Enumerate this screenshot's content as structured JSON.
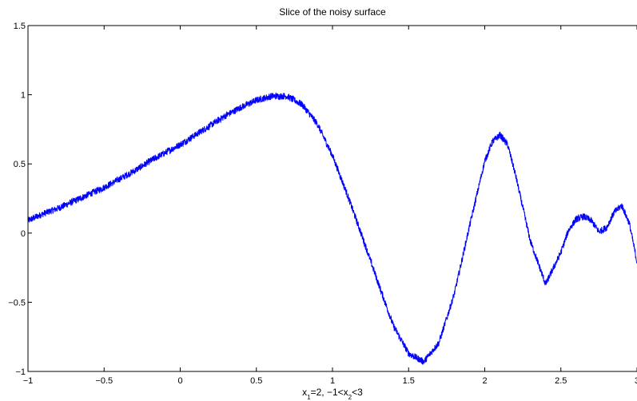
{
  "chart_data": {
    "type": "line",
    "title": "Slice of the noisy surface",
    "xlabel": {
      "parts": [
        {
          "text": "x",
          "sub": false
        },
        {
          "text": "1",
          "sub": true
        },
        {
          "text": "=2, −1<x",
          "sub": false
        },
        {
          "text": "2",
          "sub": true
        },
        {
          "text": "<3",
          "sub": false
        }
      ]
    },
    "ylabel": "",
    "xlim": [
      -1,
      3
    ],
    "ylim": [
      -1,
      1.5
    ],
    "xticks": [
      {
        "value": -1,
        "label": "−1"
      },
      {
        "value": -0.5,
        "label": "−0.5"
      },
      {
        "value": 0,
        "label": "0"
      },
      {
        "value": 0.5,
        "label": "0.5"
      },
      {
        "value": 1,
        "label": "1"
      },
      {
        "value": 1.5,
        "label": "1.5"
      },
      {
        "value": 2,
        "label": "2"
      },
      {
        "value": 2.5,
        "label": "2.5"
      },
      {
        "value": 3,
        "label": "3"
      }
    ],
    "yticks": [
      {
        "value": -1,
        "label": "−1"
      },
      {
        "value": -0.5,
        "label": "−0.5"
      },
      {
        "value": 0,
        "label": "0"
      },
      {
        "value": 0.5,
        "label": "0.5"
      },
      {
        "value": 1,
        "label": "1"
      },
      {
        "value": 1.5,
        "label": "1.5"
      }
    ],
    "grid": false,
    "series": [
      {
        "color": "#0000ff",
        "noise_amplitude": 0.025,
        "x": [
          -1,
          -0.9,
          -0.8,
          -0.7,
          -0.6,
          -0.5,
          -0.4,
          -0.3,
          -0.2,
          -0.1,
          0,
          0.1,
          0.2,
          0.3,
          0.4,
          0.5,
          0.6,
          0.7,
          0.8,
          0.9,
          1.0,
          1.1,
          1.2,
          1.3,
          1.4,
          1.5,
          1.6,
          1.7,
          1.8,
          1.9,
          2.0,
          2.05,
          2.1,
          2.15,
          2.2,
          2.3,
          2.4,
          2.5,
          2.55,
          2.6,
          2.65,
          2.7,
          2.75,
          2.8,
          2.85,
          2.9,
          2.95,
          3.0
        ],
        "y": [
          0.09,
          0.14,
          0.18,
          0.23,
          0.28,
          0.33,
          0.39,
          0.45,
          0.52,
          0.58,
          0.64,
          0.71,
          0.78,
          0.85,
          0.91,
          0.96,
          0.99,
          0.99,
          0.93,
          0.79,
          0.56,
          0.27,
          -0.04,
          -0.36,
          -0.67,
          -0.87,
          -0.93,
          -0.79,
          -0.44,
          0.05,
          0.52,
          0.66,
          0.71,
          0.64,
          0.43,
          -0.06,
          -0.37,
          -0.14,
          0.02,
          0.1,
          0.12,
          0.09,
          0.01,
          0.04,
          0.15,
          0.2,
          0.07,
          -0.21
        ]
      }
    ]
  }
}
